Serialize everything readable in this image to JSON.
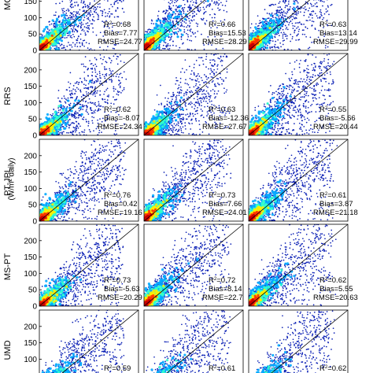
{
  "chart_data": {
    "type": "scatter",
    "rows": [
      "MOD",
      "RRS",
      "PT-JPL",
      "MS-PT",
      "UMD"
    ],
    "shared_ylabel": "(W/m² daily)",
    "yticks": [
      0,
      50,
      100,
      150,
      200
    ],
    "ylim": [
      0,
      250
    ],
    "xlim": [
      0,
      250
    ],
    "reference_line": "1:1",
    "panels": [
      {
        "row": "MOD",
        "col": 0,
        "r2": "0.68",
        "bias": "7.77",
        "rmse": "24.77"
      },
      {
        "row": "MOD",
        "col": 1,
        "r2": "0.66",
        "bias": "15.53",
        "rmse": "28.29"
      },
      {
        "row": "MOD",
        "col": 2,
        "r2": "0.63",
        "bias": "13.14",
        "rmse": "29.99"
      },
      {
        "row": "RRS",
        "col": 0,
        "r2": "0.62",
        "bias": "-8.07",
        "rmse": "24.34"
      },
      {
        "row": "RRS",
        "col": 1,
        "r2": "0.63",
        "bias": "-12.36",
        "rmse": "27.67"
      },
      {
        "row": "RRS",
        "col": 2,
        "r2": "0.55",
        "bias": "-5.66",
        "rmse": "20.44"
      },
      {
        "row": "PT-JPL",
        "col": 0,
        "r2": "0.76",
        "bias": "0.42",
        "rmse": "19.16"
      },
      {
        "row": "PT-JPL",
        "col": 1,
        "r2": "0.73",
        "bias": "7.66",
        "rmse": "24.01"
      },
      {
        "row": "PT-JPL",
        "col": 2,
        "r2": "0.61",
        "bias": "3.87",
        "rmse": "21.18"
      },
      {
        "row": "MS-PT",
        "col": 0,
        "r2": "0.73",
        "bias": "-5.63",
        "rmse": "20.29"
      },
      {
        "row": "MS-PT",
        "col": 1,
        "r2": "0.72",
        "bias": "8.14",
        "rmse": "22.7"
      },
      {
        "row": "MS-PT",
        "col": 2,
        "r2": "0.62",
        "bias": "5.55",
        "rmse": "20.63"
      },
      {
        "row": "UMD",
        "col": 0,
        "r2": "0.59",
        "bias": "",
        "rmse": ""
      },
      {
        "row": "UMD",
        "col": 1,
        "r2": "0.61",
        "bias": "",
        "rmse": ""
      },
      {
        "row": "UMD",
        "col": 2,
        "r2": "0.62",
        "bias": "",
        "rmse": ""
      }
    ]
  },
  "colors": {
    "point": "#0a1fb5",
    "density": [
      "#00209f",
      "#00a8ff",
      "#33ffcc",
      "#ffee00",
      "#ff3300",
      "#c80000"
    ],
    "axis": "#000000",
    "line": "#000000"
  }
}
